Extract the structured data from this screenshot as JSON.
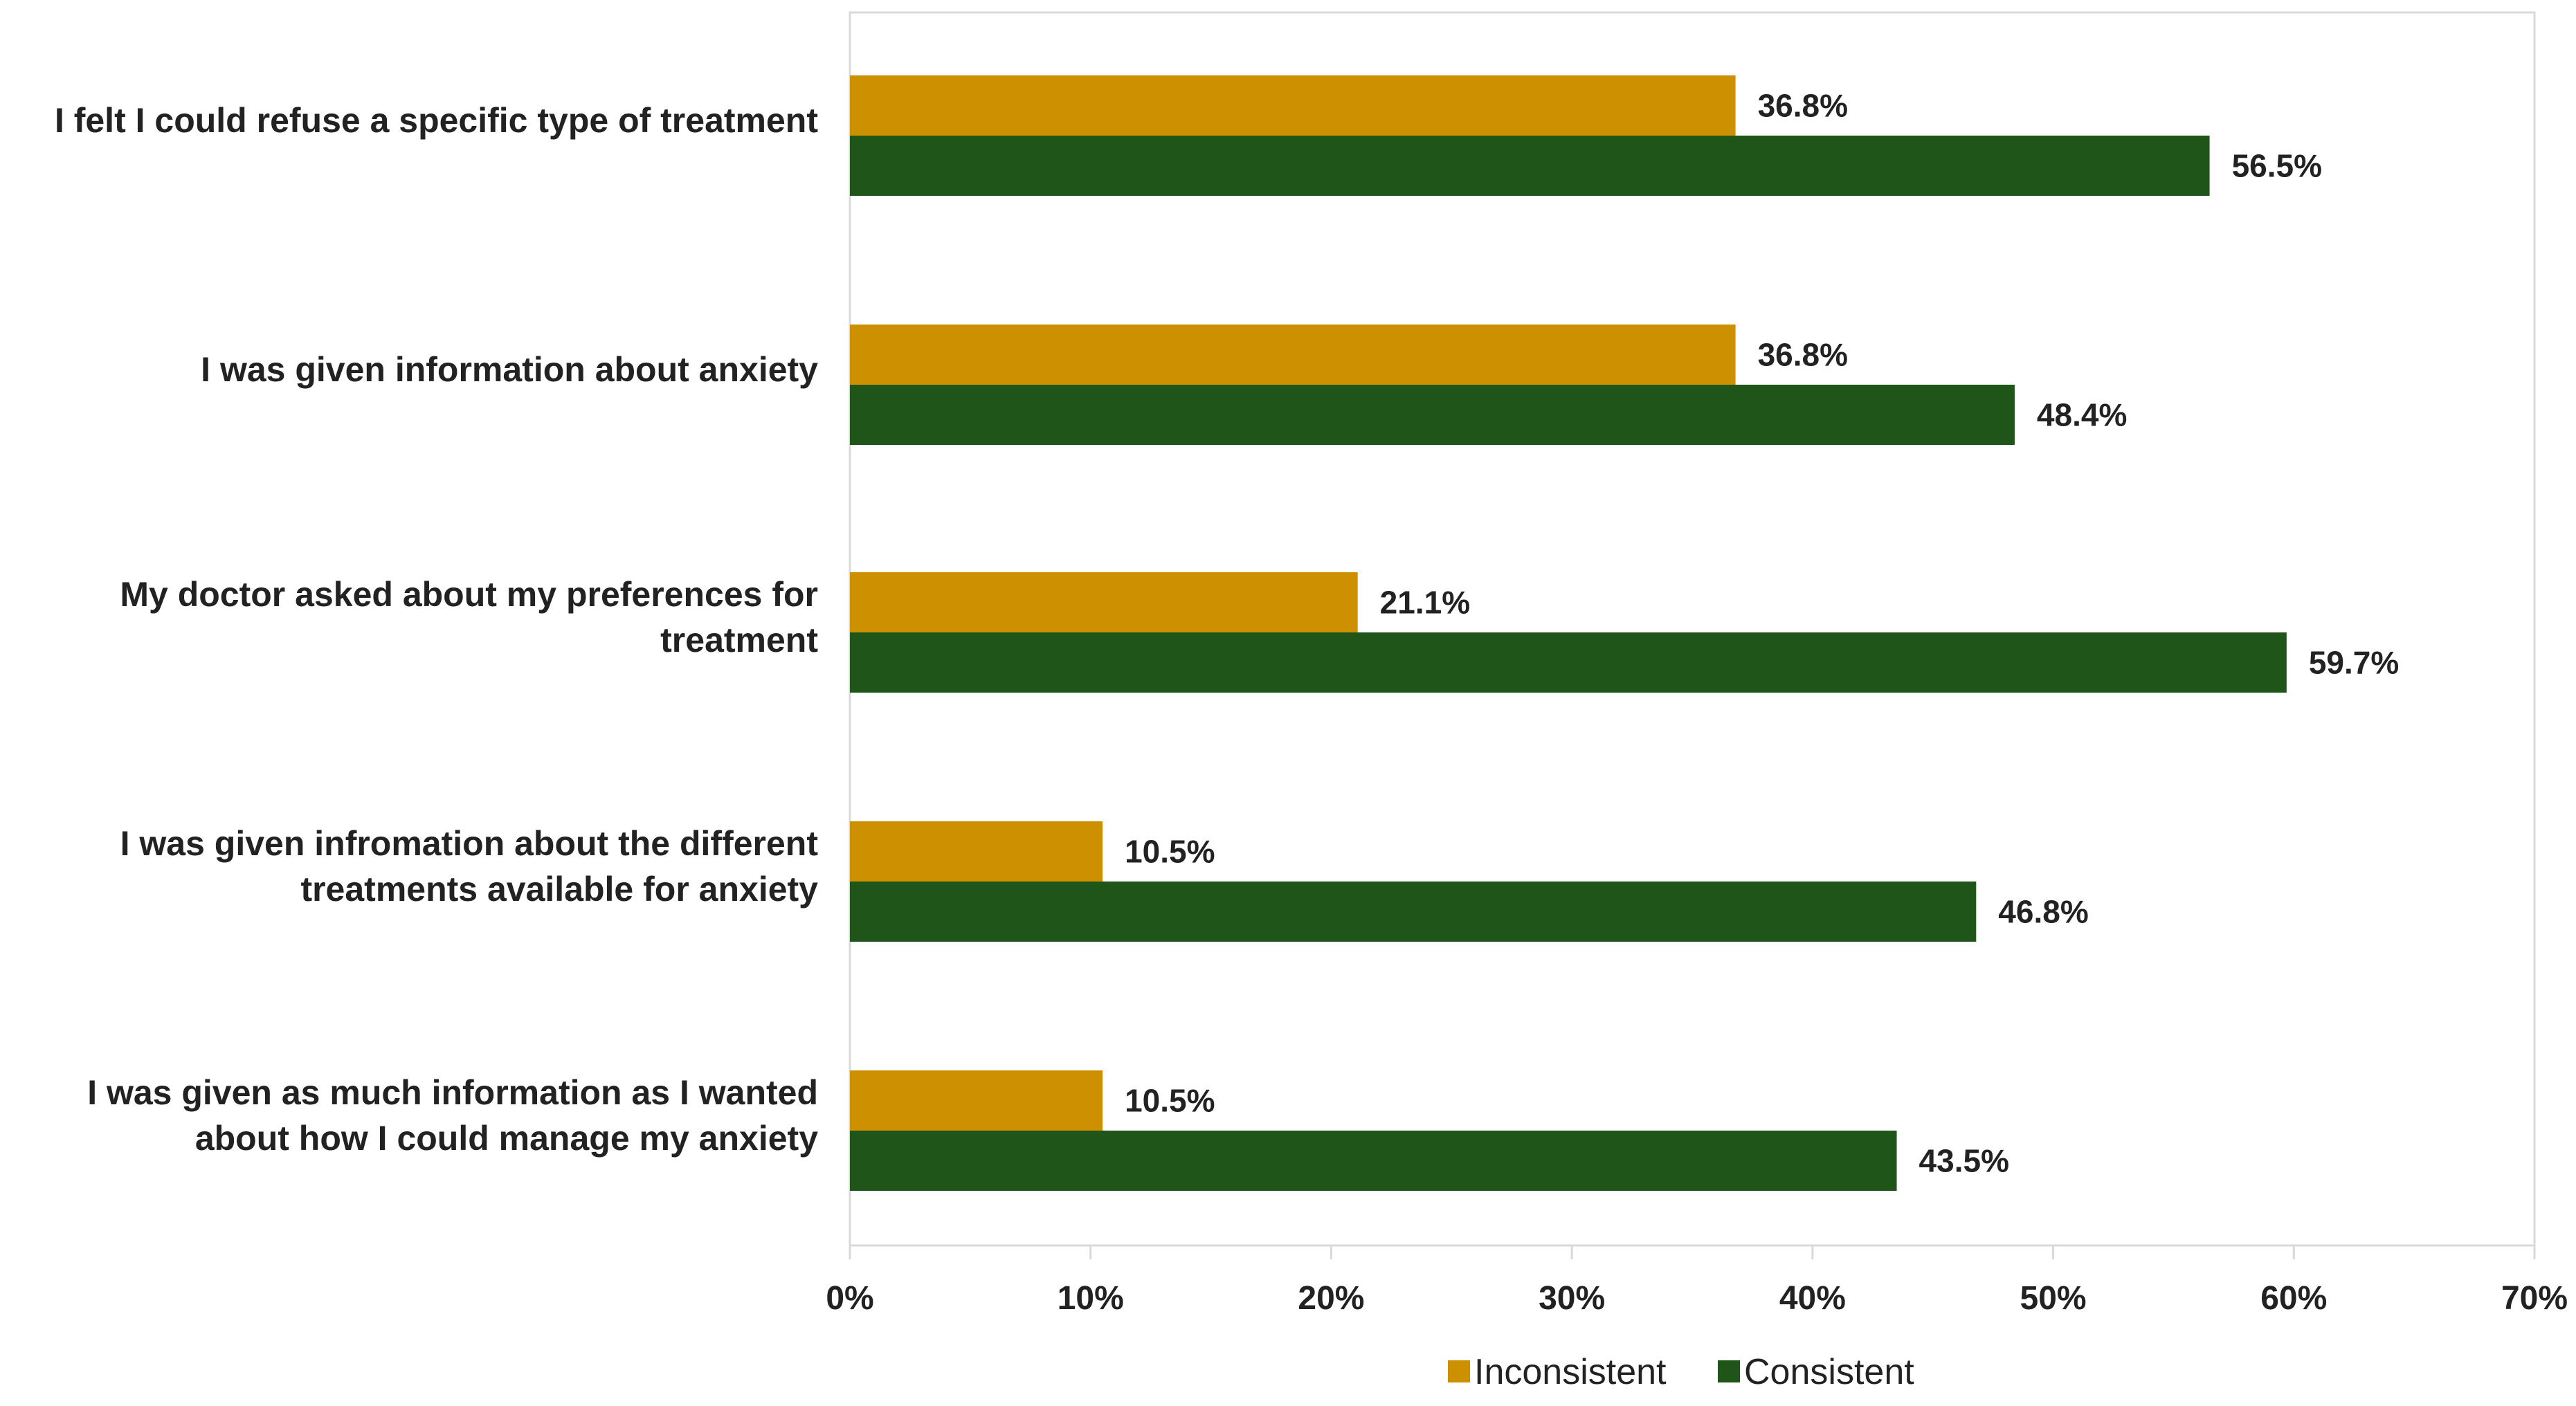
{
  "chart_data": {
    "type": "bar",
    "orientation": "horizontal",
    "title": "",
    "xlabel": "",
    "ylabel": "",
    "xlim": [
      0,
      70
    ],
    "grid": false,
    "categories": [
      [
        "I felt I could refuse a specific type of treatment"
      ],
      [
        "I was given information about anxiety"
      ],
      [
        "My doctor asked about my preferences for",
        "treatment"
      ],
      [
        "I was given infromation about the different",
        "treatments available for anxiety"
      ],
      [
        "I was given as much information as I wanted",
        "about how I could manage my anxiety"
      ]
    ],
    "series": [
      {
        "name": "Inconsistent",
        "color": "#CC9000",
        "values": [
          36.8,
          36.8,
          21.1,
          10.5,
          10.5
        ],
        "labels": [
          "36.8%",
          "36.8%",
          "21.1%",
          "10.5%",
          "10.5%"
        ]
      },
      {
        "name": "Consistent",
        "color": "#1F5519",
        "values": [
          56.5,
          48.4,
          59.7,
          46.8,
          43.5
        ],
        "labels": [
          "56.5%",
          "48.4%",
          "59.7%",
          "46.8%",
          "43.5%"
        ]
      }
    ],
    "ticks": [
      0,
      10,
      20,
      30,
      40,
      50,
      60,
      70
    ],
    "tick_labels": [
      "0%",
      "10%",
      "20%",
      "30%",
      "40%",
      "50%",
      "60%",
      "70%"
    ],
    "legend": {
      "position": "bottom",
      "entries": [
        "Inconsistent",
        "Consistent"
      ]
    },
    "axis_color": "#D9D9D9",
    "text_color": "#222222"
  }
}
